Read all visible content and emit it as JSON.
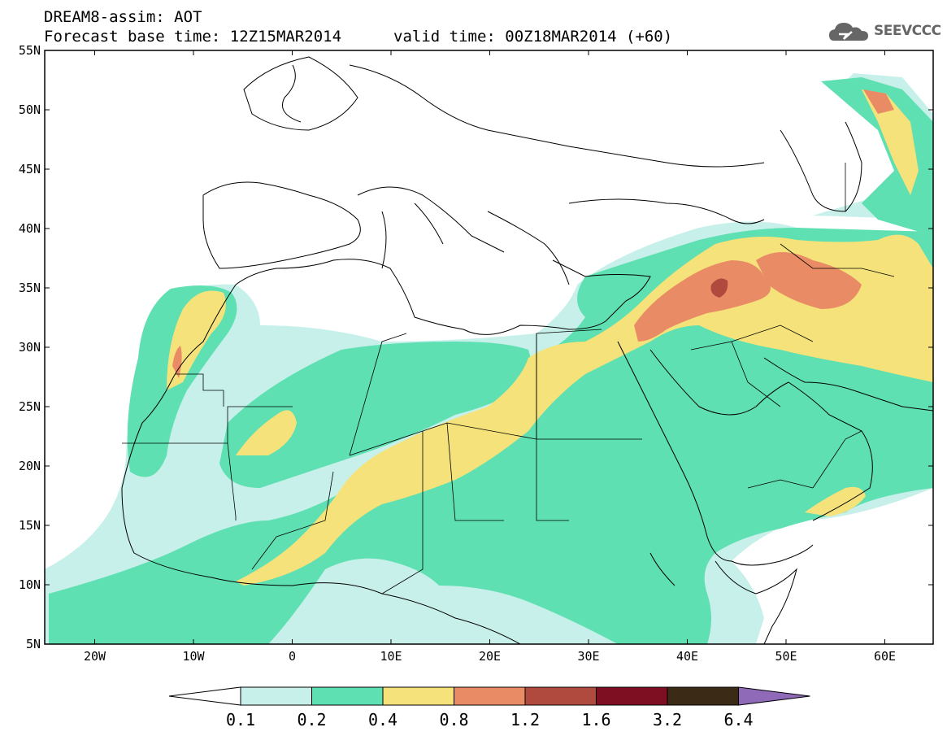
{
  "header": {
    "line1": "DREAM8-assim: AOT",
    "line2": "Forecast base time: 12Z15MAR2014",
    "valid": "valid time: 00Z18MAR2014 (+60)"
  },
  "logo": {
    "text": "SEEVCCC"
  },
  "axes": {
    "lat_labels": [
      "55N",
      "50N",
      "45N",
      "40N",
      "35N",
      "30N",
      "25N",
      "20N",
      "15N",
      "10N",
      "5N"
    ],
    "lon_labels": [
      "20W",
      "10W",
      "0",
      "10E",
      "20E",
      "30E",
      "40E",
      "50E",
      "60E"
    ]
  },
  "colorbar": {
    "labels": [
      "0.1",
      "0.2",
      "0.4",
      "0.8",
      "1.2",
      "1.6",
      "3.2",
      "6.4"
    ],
    "colors": [
      "#ffffff",
      "#c8f0ea",
      "#5ee0b2",
      "#f5e27a",
      "#e98c65",
      "#b14a3e",
      "#7e0f22",
      "#3b2a16",
      "#8e6ab8"
    ]
  },
  "map_colors": {
    "land_border": "#000000",
    "aot_0.1_0.2": "#c8f0ea",
    "aot_0.2_0.4": "#5ee0b2",
    "aot_0.4_0.8": "#f5e27a",
    "aot_0.8_1.2": "#e98c65",
    "aot_1.2_1.6": "#b14a3e"
  }
}
